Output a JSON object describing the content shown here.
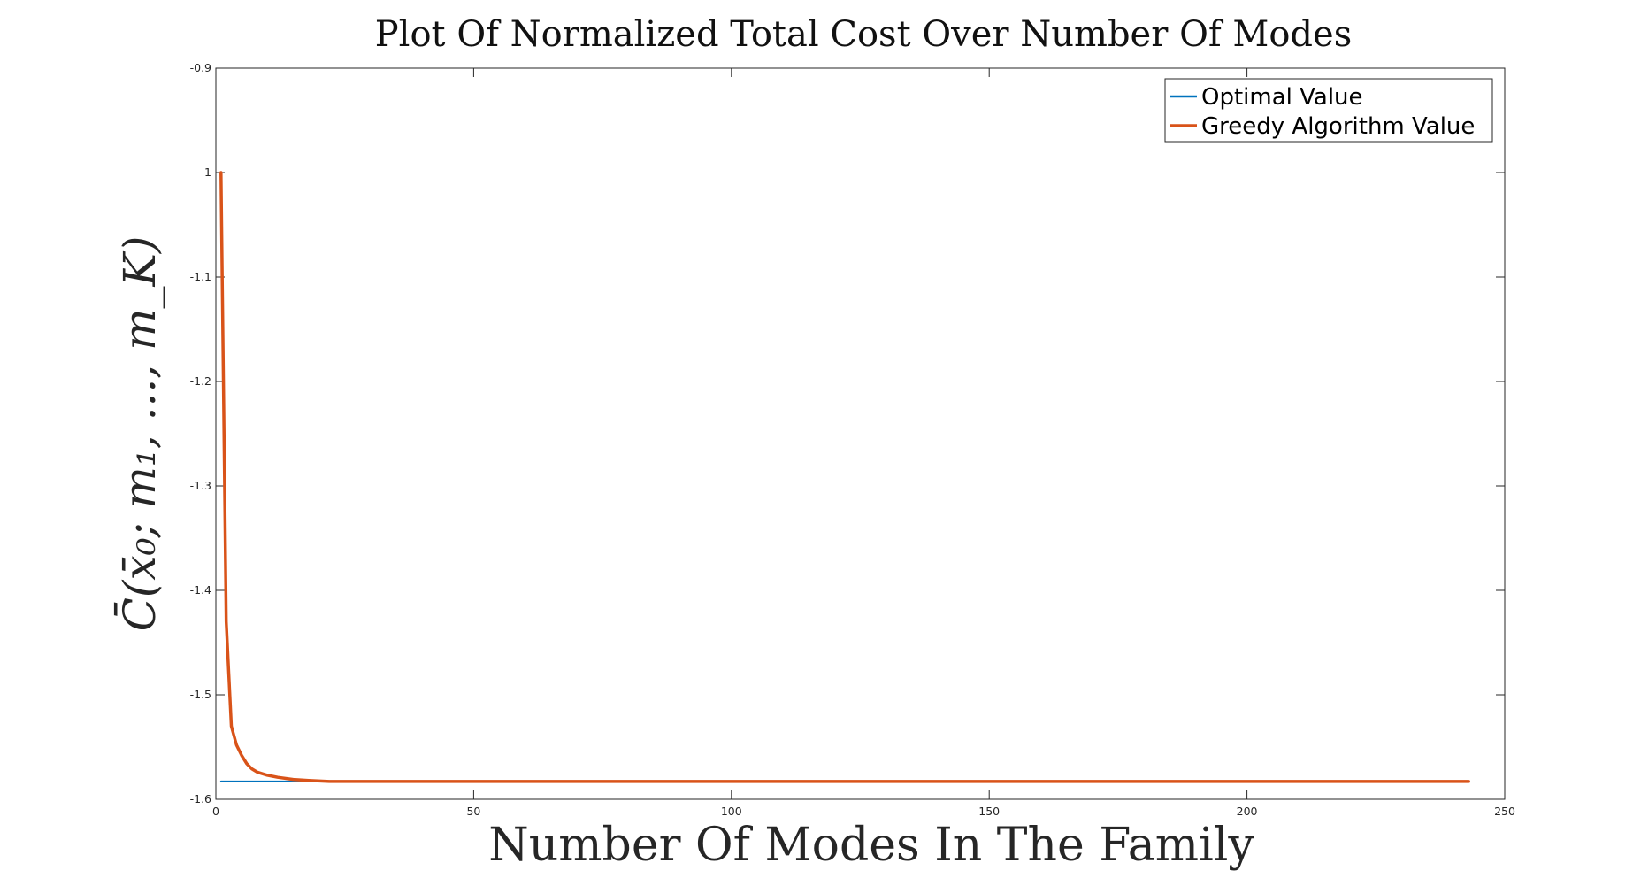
{
  "chart_data": {
    "type": "line",
    "title": "Plot Of Normalized Total Cost Over Number Of Modes",
    "xlabel": "Number Of Modes In The Family",
    "ylabel": "C̄(x̄₀; m₁, ..., m_K)",
    "xlim": [
      0,
      250
    ],
    "ylim": [
      -1.6,
      -0.9
    ],
    "xticks": [
      0,
      50,
      100,
      150,
      200,
      250
    ],
    "xtick_labels": [
      "0",
      "50",
      "100",
      "150",
      "200",
      "250"
    ],
    "yticks": [
      -0.9,
      -1.0,
      -1.1,
      -1.2,
      -1.3,
      -1.4,
      -1.5,
      -1.6
    ],
    "ytick_labels": [
      "-0.9",
      "-1",
      "-1.1",
      "-1.2",
      "-1.3",
      "-1.4",
      "-1.5",
      "-1.6"
    ],
    "grid": false,
    "legend_position": "top-right",
    "series": [
      {
        "name": "Optimal Value",
        "color": "#0072BD",
        "x": [
          1,
          243
        ],
        "y": [
          -1.583,
          -1.583
        ]
      },
      {
        "name": "Greedy Algorithm Value",
        "color": "#D95319",
        "x": [
          1,
          2,
          3,
          4,
          5,
          6,
          7,
          8,
          10,
          12,
          15,
          18,
          22,
          30,
          40,
          60,
          100,
          150,
          200,
          243
        ],
        "y": [
          -1.0,
          -1.43,
          -1.53,
          -1.548,
          -1.558,
          -1.566,
          -1.571,
          -1.574,
          -1.577,
          -1.579,
          -1.581,
          -1.582,
          -1.583,
          -1.583,
          -1.583,
          -1.583,
          -1.583,
          -1.583,
          -1.583,
          -1.583
        ]
      }
    ]
  }
}
